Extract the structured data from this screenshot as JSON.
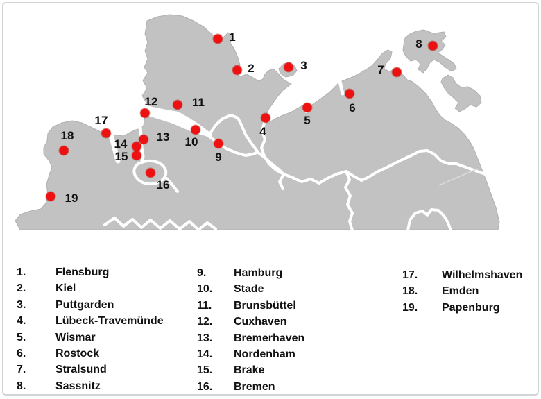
{
  "title": "Map of German seaports",
  "colors": {
    "land": "#c2c2c2",
    "land_edge": "#b0b0b0",
    "sea": "#ffffff",
    "frame": "#d4d4d4",
    "dot": "#ee1111",
    "text": "#111111"
  },
  "map": {
    "markers": [
      {
        "num": "1",
        "dot": [
          309,
          51
        ],
        "label": [
          330,
          49
        ]
      },
      {
        "num": "2",
        "dot": [
          337,
          96
        ],
        "label": [
          357,
          94
        ]
      },
      {
        "num": "3",
        "dot": [
          411,
          92
        ],
        "label": [
          433,
          90
        ]
      },
      {
        "num": "4",
        "dot": [
          378,
          165
        ],
        "label": [
          374,
          185
        ]
      },
      {
        "num": "5",
        "dot": [
          438,
          150
        ],
        "label": [
          438,
          169
        ]
      },
      {
        "num": "6",
        "dot": [
          499,
          130
        ],
        "label": [
          503,
          151
        ]
      },
      {
        "num": "7",
        "dot": [
          567,
          99
        ],
        "label": [
          544,
          96
        ]
      },
      {
        "num": "8",
        "dot": [
          619,
          61
        ],
        "label": [
          599,
          59
        ]
      },
      {
        "num": "9",
        "dot": [
          310,
          202
        ],
        "label": [
          310,
          222
        ]
      },
      {
        "num": "10",
        "dot": [
          277,
          182
        ],
        "label": [
          271,
          200
        ]
      },
      {
        "num": "11",
        "dot": [
          251,
          146
        ],
        "label": [
          281,
          143
        ]
      },
      {
        "num": "12",
        "dot": [
          204,
          158
        ],
        "label": [
          213,
          142
        ]
      },
      {
        "num": "13",
        "dot": [
          202,
          196
        ],
        "label": [
          230,
          193
        ]
      },
      {
        "num": "14",
        "dot": [
          192,
          206
        ],
        "label": [
          169,
          203
        ]
      },
      {
        "num": "15",
        "dot": [
          192,
          219
        ],
        "label": [
          170,
          221
        ]
      },
      {
        "num": "16",
        "dot": [
          212,
          244
        ],
        "label": [
          230,
          262
        ]
      },
      {
        "num": "17",
        "dot": [
          148,
          187
        ],
        "label": [
          141,
          169
        ]
      },
      {
        "num": "18",
        "dot": [
          87,
          212
        ],
        "label": [
          92,
          191
        ]
      },
      {
        "num": "19",
        "dot": [
          68,
          278
        ],
        "label": [
          98,
          281
        ]
      }
    ]
  },
  "legend": {
    "columns": [
      {
        "items": [
          {
            "num": "1.",
            "name": "Flensburg"
          },
          {
            "num": "2.",
            "name": "Kiel"
          },
          {
            "num": "3.",
            "name": "Puttgarden"
          },
          {
            "num": "4.",
            "name": "Lübeck-Travemünde"
          },
          {
            "num": "5.",
            "name": "Wismar"
          },
          {
            "num": "6.",
            "name": "Rostock"
          },
          {
            "num": "7.",
            "name": "Stralsund"
          },
          {
            "num": "8.",
            "name": "Sassnitz"
          }
        ]
      },
      {
        "items": [
          {
            "num": "9.",
            "name": "Hamburg"
          },
          {
            "num": "10.",
            "name": "Stade"
          },
          {
            "num": "11.",
            "name": "Brunsbüttel"
          },
          {
            "num": "12.",
            "name": "Cuxhaven"
          },
          {
            "num": "13.",
            "name": "Bremerhaven"
          },
          {
            "num": "14.",
            "name": "Nordenham"
          },
          {
            "num": "15.",
            "name": "Brake"
          },
          {
            "num": "16.",
            "name": "Bremen"
          }
        ]
      },
      {
        "items": [
          {
            "num": "17.",
            "name": "Wilhelmshaven"
          },
          {
            "num": "18.",
            "name": "Emden"
          },
          {
            "num": "19.",
            "name": "Papenburg"
          }
        ]
      }
    ]
  }
}
